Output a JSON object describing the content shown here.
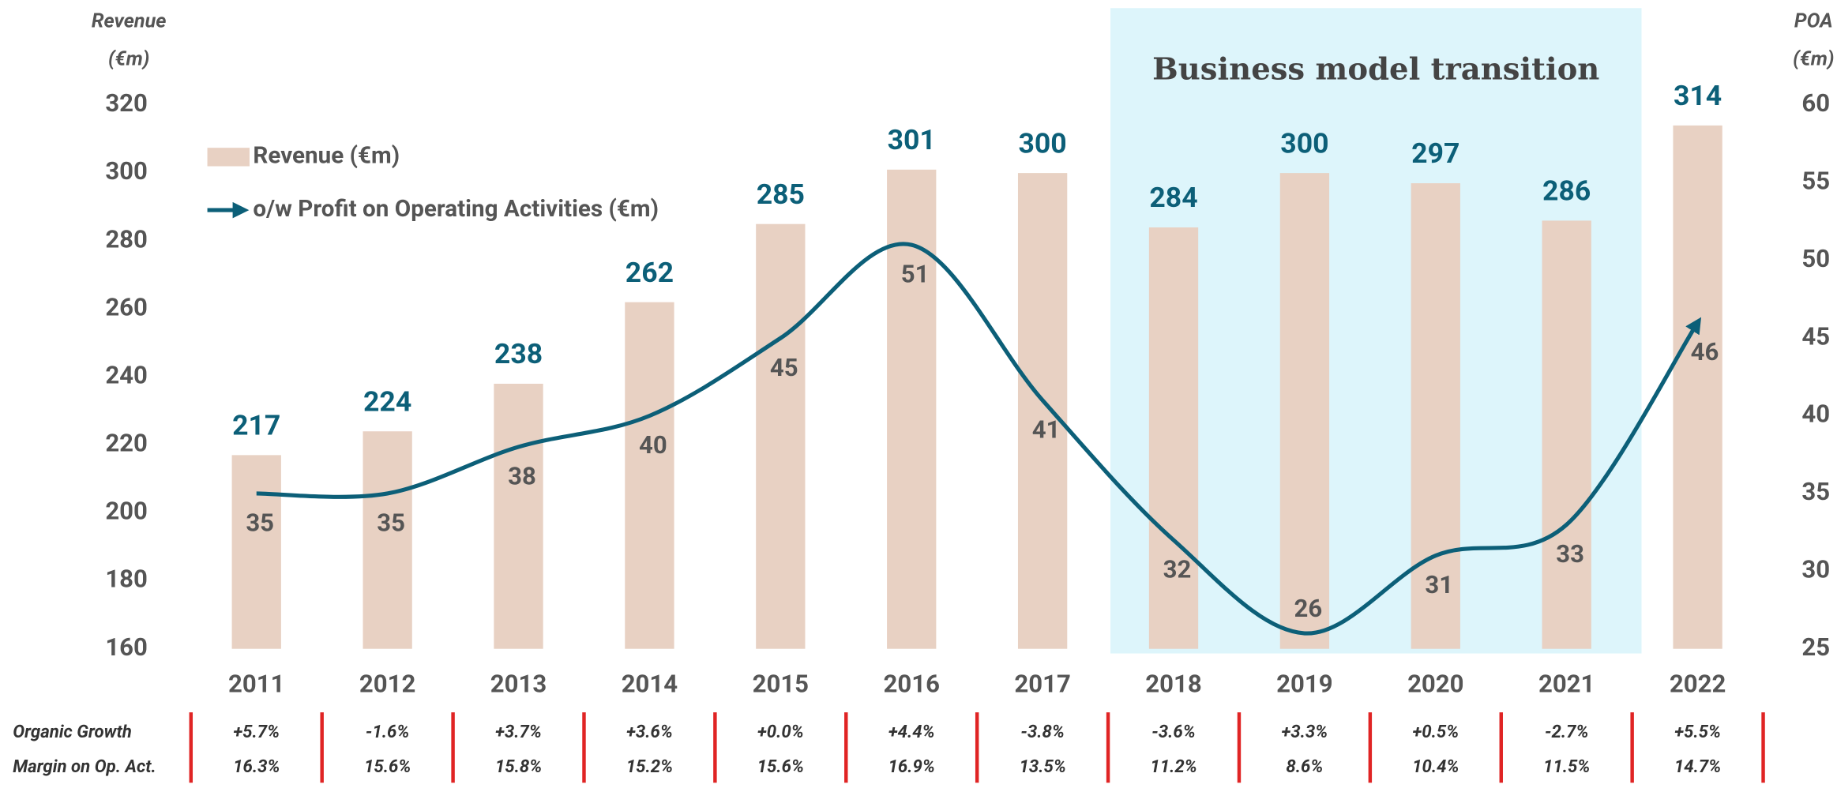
{
  "chart_data": {
    "type": "bar_line",
    "ylabel": [
      "Revenue",
      "(€m)"
    ],
    "y2label": [
      "POA",
      "(€m)"
    ],
    "categories": [
      "2011",
      "2012",
      "2013",
      "2014",
      "2015",
      "2016",
      "2017",
      "2018",
      "2019",
      "2020",
      "2021",
      "2022"
    ],
    "series": [
      {
        "name": "Revenue (€m)",
        "type": "bar",
        "color": "#e8d1c3",
        "label_color": "#0c5f78",
        "values": [
          217,
          224,
          238,
          262,
          285,
          301,
          300,
          284,
          300,
          297,
          286,
          314
        ]
      },
      {
        "name": "o/w Profit on Operating Activities (€m)",
        "type": "line",
        "axis": "y2",
        "color": "#0c5f78",
        "label_color": "#555555",
        "values": [
          35,
          35,
          38,
          40,
          45,
          51,
          41,
          32,
          26,
          31,
          33,
          46
        ]
      }
    ],
    "ylim": [
      160,
      320
    ],
    "yticks": [
      160,
      180,
      200,
      220,
      240,
      260,
      280,
      300,
      320
    ],
    "y2lim": [
      25,
      60
    ],
    "y2ticks": [
      25,
      30,
      35,
      40,
      45,
      50,
      55,
      60
    ],
    "annotation": {
      "text": "Business model transition",
      "from": "2018",
      "to": "2021",
      "color": "#ddf5fb"
    },
    "table": {
      "rows": [
        {
          "label": "Organic Growth",
          "values": [
            "+5.7%",
            "-1.6%",
            "+3.7%",
            "+3.6%",
            "+0.0%",
            "+4.4%",
            "-3.8%",
            "-3.6%",
            "+3.3%",
            "+0.5%",
            "-2.7%",
            "+5.5%"
          ]
        },
        {
          "label": "Margin on Op. Act.",
          "values": [
            "16.3%",
            "15.6%",
            "15.8%",
            "15.2%",
            "15.6%",
            "16.9%",
            "13.5%",
            "11.2%",
            "8.6%",
            "10.4%",
            "11.5%",
            "14.7%"
          ]
        }
      ],
      "separator_color": "#e02424"
    }
  }
}
